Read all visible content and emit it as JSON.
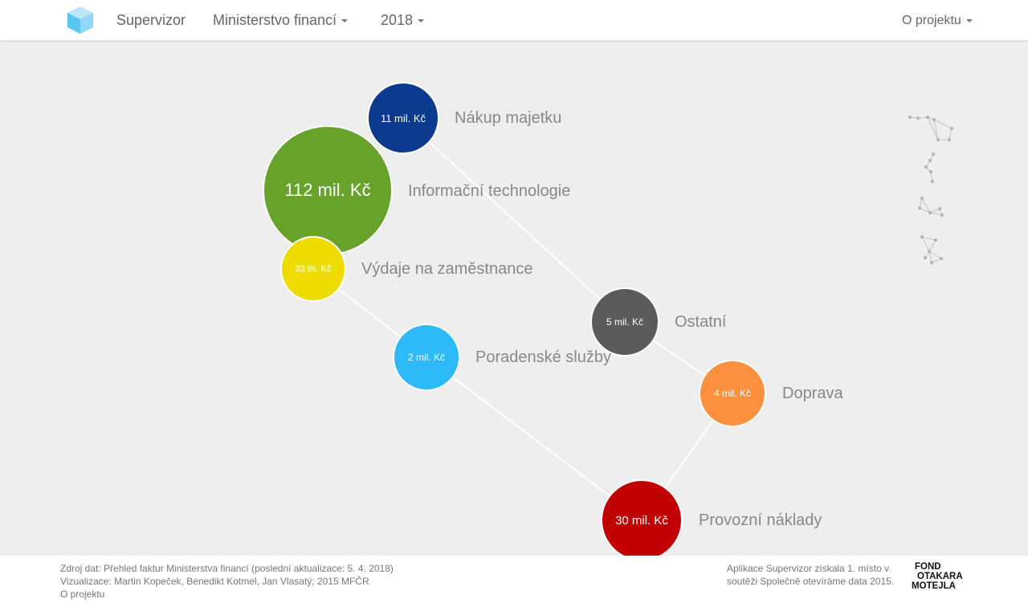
{
  "navbar": {
    "brand": "Supervizor",
    "ministry": "Ministerstvo financí",
    "year": "2018",
    "about": "O projektu"
  },
  "colors": {
    "nakup_majetku": "#0b3a8e",
    "informacni_technologie": "#67a22a",
    "vydaje_na_zamestnance": "#eedc00",
    "poradenske_sluzby": "#2dbaf8",
    "ostatni": "#5b5b5b",
    "doprava": "#fb913e",
    "provozni_naklady": "#c00003"
  },
  "bubbles": {
    "nakup_majetku": {
      "value": "11 mil. Kč",
      "label": "Nákup majetku"
    },
    "informacni_technologie": {
      "value": "112 mil. Kč",
      "label": "Informační technologie"
    },
    "vydaje_na_zamestnance": {
      "value": "33 tis. Kč",
      "label": "Výdaje na zaměstnance"
    },
    "poradenske_sluzby": {
      "value": "2 mil. Kč",
      "label": "Poradenské služby"
    },
    "ostatni": {
      "value": "5 mil. Kč",
      "label": "Ostatní"
    },
    "doprava": {
      "value": "4 mil. Kč",
      "label": "Doprava"
    },
    "provozni_naklady": {
      "value": "30 mil. Kč",
      "label": "Provozní náklady"
    }
  },
  "footer": {
    "source": "Zdroj dat: Přehled faktur Ministerstva financí (poslední aktualizace: 5. 4. 2018)",
    "credits": "Vizualizace: Martin Kopeček, Benedikt Kotmel, Jan Vlasatý; 2015 MFČR",
    "about_link": "O projektu",
    "award_line1": "Aplikace Supervizor získala 1. místo v",
    "award_line2": "soutěži Společně otevíráme data 2015.",
    "fund_logo": [
      "FOND",
      "OTAKARA",
      "MOTEJLA"
    ]
  },
  "icons": {
    "logo": "cube-icon",
    "constellations": [
      "constellation-1-icon",
      "constellation-2-icon",
      "constellation-3-icon",
      "constellation-4-icon"
    ]
  }
}
